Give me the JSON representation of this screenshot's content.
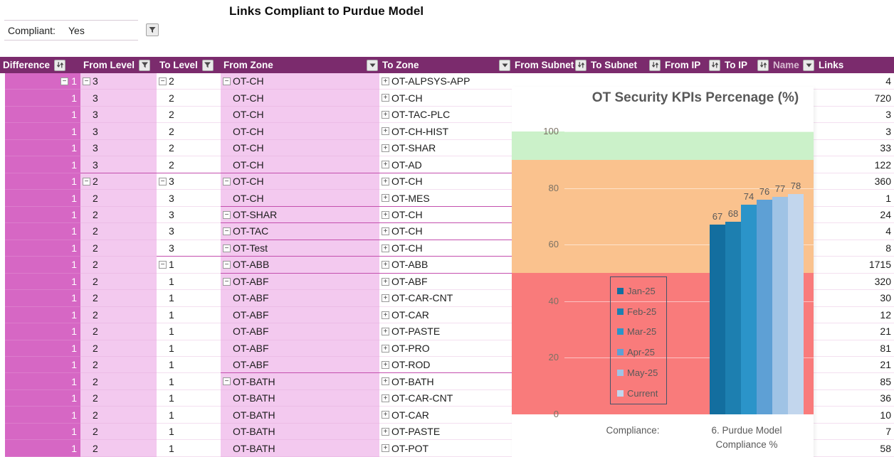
{
  "page_title": "Links Compliant to Purdue Model",
  "filter": {
    "label": "Compliant:",
    "value": "Yes"
  },
  "table": {
    "to_zone_expand_icon": true,
    "columns": [
      {
        "key": "difference",
        "label": "Difference",
        "icon": "sort"
      },
      {
        "key": "from_level",
        "label": "From Level",
        "icon": "funnel"
      },
      {
        "key": "to_level",
        "label": "To Level",
        "icon": "funnel"
      },
      {
        "key": "from_zone",
        "label": "From Zone",
        "icon": "dropdown"
      },
      {
        "key": "to_zone",
        "label": "To Zone",
        "icon": "dropdown"
      },
      {
        "key": "from_subnet",
        "label": "From Subnet",
        "icon": "sort"
      },
      {
        "key": "to_subnet",
        "label": "To Subnet",
        "icon": "sort"
      },
      {
        "key": "from_ip",
        "label": "From IP",
        "icon": "sort"
      },
      {
        "key": "to_ip",
        "label": "To IP",
        "icon": "sort"
      },
      {
        "key": "name",
        "label": "Name",
        "icon": "dropdown",
        "muted": true
      },
      {
        "key": "links",
        "label": "Links",
        "icon": "none"
      }
    ],
    "rows": [
      {
        "difference": "1",
        "from_level": "3",
        "to_level": "2",
        "from_zone": "OT-CH",
        "to_zone": "OT-ALPSYS-APP",
        "links": "4",
        "collapsed": [
          "difference",
          "from_level",
          "to_level",
          "from_zone"
        ]
      },
      {
        "difference": "1",
        "from_level": "3",
        "to_level": "2",
        "from_zone": "OT-CH",
        "to_zone": "OT-CH",
        "links": "720"
      },
      {
        "difference": "1",
        "from_level": "3",
        "to_level": "2",
        "from_zone": "OT-CH",
        "to_zone": "OT-TAC-PLC",
        "links": "3"
      },
      {
        "difference": "1",
        "from_level": "3",
        "to_level": "2",
        "from_zone": "OT-CH",
        "to_zone": "OT-CH-HIST",
        "links": "3"
      },
      {
        "difference": "1",
        "from_level": "3",
        "to_level": "2",
        "from_zone": "OT-CH",
        "to_zone": "OT-SHAR",
        "links": "33"
      },
      {
        "difference": "1",
        "from_level": "3",
        "to_level": "2",
        "from_zone": "OT-CH",
        "to_zone": "OT-AD",
        "links": "122",
        "sep": "from_level"
      },
      {
        "difference": "1",
        "from_level": "2",
        "to_level": "3",
        "from_zone": "OT-CH",
        "to_zone": "OT-CH",
        "links": "360",
        "collapsed": [
          "from_level",
          "to_level",
          "from_zone"
        ]
      },
      {
        "difference": "1",
        "from_level": "2",
        "to_level": "3",
        "from_zone": "OT-CH",
        "to_zone": "OT-MES",
        "links": "1",
        "sep": "from_zone"
      },
      {
        "difference": "1",
        "from_level": "2",
        "to_level": "3",
        "from_zone": "OT-SHAR",
        "to_zone": "OT-CH",
        "links": "24",
        "collapsed": [
          "from_zone"
        ],
        "sep": "from_zone"
      },
      {
        "difference": "1",
        "from_level": "2",
        "to_level": "3",
        "from_zone": "OT-TAC",
        "to_zone": "OT-CH",
        "links": "4",
        "collapsed": [
          "from_zone"
        ],
        "sep": "from_zone"
      },
      {
        "difference": "1",
        "from_level": "2",
        "to_level": "3",
        "from_zone": "OT-Test",
        "to_zone": "OT-CH",
        "links": "8",
        "collapsed": [
          "from_zone"
        ],
        "sep": "to_level"
      },
      {
        "difference": "1",
        "from_level": "2",
        "to_level": "1",
        "from_zone": "OT-ABB",
        "to_zone": "OT-ABB",
        "links": "1715",
        "collapsed": [
          "to_level",
          "from_zone"
        ],
        "sep": "from_zone"
      },
      {
        "difference": "1",
        "from_level": "2",
        "to_level": "1",
        "from_zone": "OT-ABF",
        "to_zone": "OT-ABF",
        "links": "320",
        "collapsed": [
          "from_zone"
        ]
      },
      {
        "difference": "1",
        "from_level": "2",
        "to_level": "1",
        "from_zone": "OT-ABF",
        "to_zone": "OT-CAR-CNT",
        "links": "30"
      },
      {
        "difference": "1",
        "from_level": "2",
        "to_level": "1",
        "from_zone": "OT-ABF",
        "to_zone": "OT-CAR",
        "links": "12"
      },
      {
        "difference": "1",
        "from_level": "2",
        "to_level": "1",
        "from_zone": "OT-ABF",
        "to_zone": "OT-PASTE",
        "links": "21"
      },
      {
        "difference": "1",
        "from_level": "2",
        "to_level": "1",
        "from_zone": "OT-ABF",
        "to_zone": "OT-PRO",
        "links": "81"
      },
      {
        "difference": "1",
        "from_level": "2",
        "to_level": "1",
        "from_zone": "OT-ABF",
        "to_zone": "OT-ROD",
        "links": "21",
        "sep": "from_zone"
      },
      {
        "difference": "1",
        "from_level": "2",
        "to_level": "1",
        "from_zone": "OT-BATH",
        "to_zone": "OT-BATH",
        "links": "85",
        "collapsed": [
          "from_zone"
        ]
      },
      {
        "difference": "1",
        "from_level": "2",
        "to_level": "1",
        "from_zone": "OT-BATH",
        "to_zone": "OT-CAR-CNT",
        "links": "36"
      },
      {
        "difference": "1",
        "from_level": "2",
        "to_level": "1",
        "from_zone": "OT-BATH",
        "to_zone": "OT-CAR",
        "links": "10"
      },
      {
        "difference": "1",
        "from_level": "2",
        "to_level": "1",
        "from_zone": "OT-BATH",
        "to_zone": "OT-PASTE",
        "links": "7"
      },
      {
        "difference": "1",
        "from_level": "2",
        "to_level": "1",
        "from_zone": "OT-BATH",
        "to_zone": "OT-POT",
        "links": "58"
      }
    ]
  },
  "chart_data": {
    "type": "bar",
    "title": "OT Security KPIs Percenage (%)",
    "categories": [
      "Compliance:",
      "6. Purdue Model Compliance %"
    ],
    "series": [
      {
        "name": "Jan-25",
        "color": "#136E9F",
        "values": [
          null,
          67
        ]
      },
      {
        "name": "Feb-25",
        "color": "#1D7FB0",
        "values": [
          null,
          68
        ]
      },
      {
        "name": "Mar-25",
        "color": "#2B94C9",
        "values": [
          null,
          74
        ]
      },
      {
        "name": "Apr-25",
        "color": "#5EA0D5",
        "values": [
          null,
          76
        ]
      },
      {
        "name": "May-25",
        "color": "#9FC3E5",
        "values": [
          null,
          77
        ]
      },
      {
        "name": "Current",
        "color": "#C2D6ED",
        "values": [
          null,
          78
        ]
      }
    ],
    "ylim": [
      0,
      100
    ],
    "yticks": [
      100,
      80,
      60,
      40,
      20,
      0
    ],
    "bands": [
      {
        "label": "good",
        "from": 90,
        "to": 100,
        "color": "#CBF1C9"
      },
      {
        "label": "warning",
        "from": 50,
        "to": 90,
        "color": "#FAC28E"
      },
      {
        "label": "critical",
        "from": 0,
        "to": 50,
        "color": "#F97B7B"
      }
    ],
    "legend_position": "middle-left",
    "gridlines": true
  }
}
